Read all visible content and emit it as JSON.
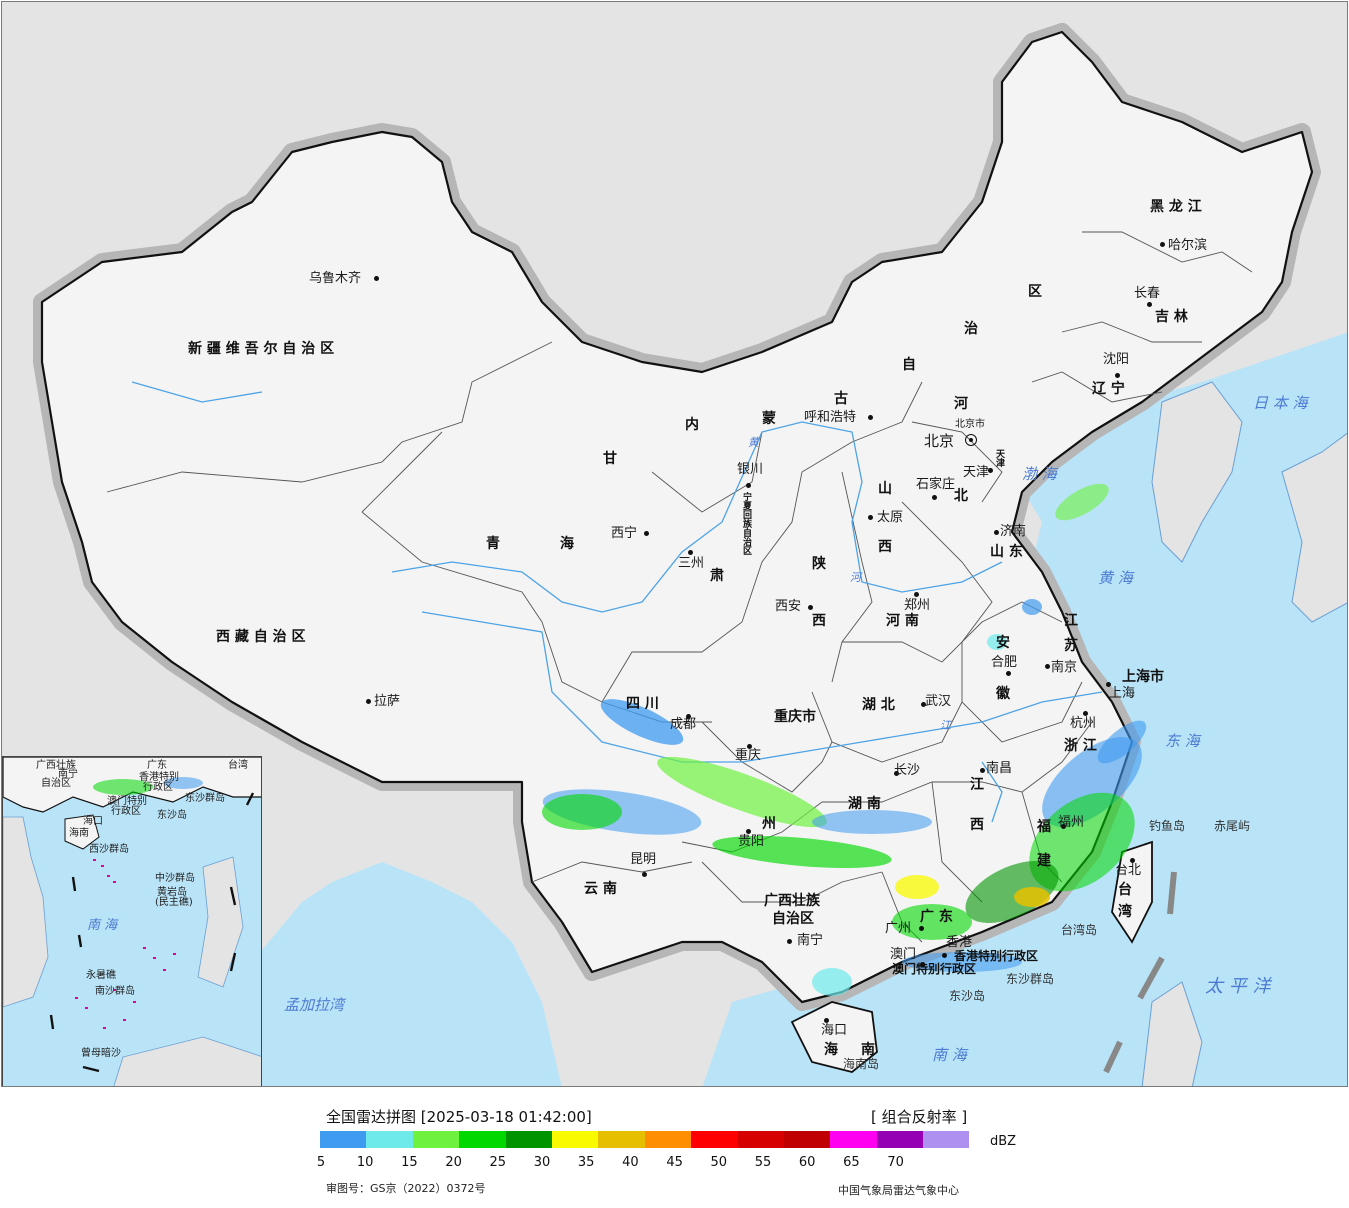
{
  "map": {
    "provinces": [
      {
        "id": "xinjiang",
        "name": "新 疆 维 吾 尔 自 治 区"
      },
      {
        "id": "xizang",
        "name": "西 藏 自 治 区"
      },
      {
        "id": "qinghai1",
        "name": "青"
      },
      {
        "id": "qinghai2",
        "name": "海"
      },
      {
        "id": "gansu1",
        "name": "甘"
      },
      {
        "id": "gansu2",
        "name": "肃"
      },
      {
        "id": "neimenggu1",
        "name": "内"
      },
      {
        "id": "neimenggu2",
        "name": "蒙"
      },
      {
        "id": "neimenggu3",
        "name": "古"
      },
      {
        "id": "neimenggu4",
        "name": "自"
      },
      {
        "id": "neimenggu5",
        "name": "治"
      },
      {
        "id": "neimenggu6",
        "name": "区"
      },
      {
        "id": "heilongjiang",
        "name": "黑 龙 江"
      },
      {
        "id": "jilin",
        "name": "吉 林"
      },
      {
        "id": "liaoning",
        "name": "辽 宁"
      },
      {
        "id": "hebei1",
        "name": "河"
      },
      {
        "id": "hebei2",
        "name": "北"
      },
      {
        "id": "shanxi1",
        "name": "山"
      },
      {
        "id": "shanxi2",
        "name": "西"
      },
      {
        "id": "shandong",
        "name": "山 东"
      },
      {
        "id": "henan",
        "name": "河 南"
      },
      {
        "id": "shaanxi1",
        "name": "陕"
      },
      {
        "id": "shaanxi2",
        "name": "西"
      },
      {
        "id": "ningxia",
        "name": "宁夏回族自治区"
      },
      {
        "id": "sichuan",
        "name": "四 川"
      },
      {
        "id": "chongqing",
        "name": "重庆市"
      },
      {
        "id": "hubei",
        "name": "湖 北"
      },
      {
        "id": "anhui1",
        "name": "安"
      },
      {
        "id": "anhui2",
        "name": "徽"
      },
      {
        "id": "jiangsu1",
        "name": "江"
      },
      {
        "id": "jiangsu2",
        "name": "苏"
      },
      {
        "id": "shanghai",
        "name": "上海市"
      },
      {
        "id": "zhejiang",
        "name": "浙 江"
      },
      {
        "id": "jiangxi1",
        "name": "江"
      },
      {
        "id": "jiangxi2",
        "name": "西"
      },
      {
        "id": "hunan",
        "name": "湖 南"
      },
      {
        "id": "guizhou",
        "name": "州"
      },
      {
        "id": "yunnan",
        "name": "云 南"
      },
      {
        "id": "guangxi1",
        "name": "广西壮族"
      },
      {
        "id": "guangxi2",
        "name": "自治区"
      },
      {
        "id": "guangdong",
        "name": "广 东"
      },
      {
        "id": "fujian1",
        "name": "福"
      },
      {
        "id": "fujian2",
        "name": "建"
      },
      {
        "id": "taiwan1",
        "name": "台"
      },
      {
        "id": "taiwan2",
        "name": "湾"
      },
      {
        "id": "hainan1",
        "name": "海"
      },
      {
        "id": "hainan2",
        "name": "南"
      },
      {
        "id": "hk",
        "name": "香港特别行政区"
      },
      {
        "id": "macau",
        "name": "澳门特别行政区"
      },
      {
        "id": "tianjin_small",
        "name": "天津"
      },
      {
        "id": "gansu_lanzhou_city",
        "name": "市"
      }
    ],
    "cities": [
      {
        "id": "urumqi",
        "name": "乌鲁木齐"
      },
      {
        "id": "lhasa",
        "name": "拉萨"
      },
      {
        "id": "xining",
        "name": "西宁"
      },
      {
        "id": "lanzhou",
        "name": "三州"
      },
      {
        "id": "yinchuan",
        "name": "银川"
      },
      {
        "id": "hohhot",
        "name": "呼和浩特"
      },
      {
        "id": "beijing",
        "name": "北京"
      },
      {
        "id": "tianjin",
        "name": "天津"
      },
      {
        "id": "shijiazhuang",
        "name": "石家庄"
      },
      {
        "id": "taiyuan",
        "name": "太原"
      },
      {
        "id": "jinan",
        "name": "济南"
      },
      {
        "id": "zhengzhou",
        "name": "郑州"
      },
      {
        "id": "xian",
        "name": "西安"
      },
      {
        "id": "chengdu",
        "name": "成都"
      },
      {
        "id": "chongqing_city",
        "name": "重庆"
      },
      {
        "id": "wuhan",
        "name": "武汉"
      },
      {
        "id": "hefei",
        "name": "合肥"
      },
      {
        "id": "nanjing",
        "name": "南京"
      },
      {
        "id": "shanghai_city",
        "name": "上海"
      },
      {
        "id": "hangzhou",
        "name": "杭州"
      },
      {
        "id": "nanchang",
        "name": "南昌"
      },
      {
        "id": "changsha",
        "name": "长沙"
      },
      {
        "id": "guiyang",
        "name": "贵阳"
      },
      {
        "id": "kunming",
        "name": "昆明"
      },
      {
        "id": "nanning",
        "name": "南宁"
      },
      {
        "id": "guangzhou",
        "name": "广州"
      },
      {
        "id": "hongkong",
        "name": "香港"
      },
      {
        "id": "macao",
        "name": "澳门"
      },
      {
        "id": "fuzhou",
        "name": "福州"
      },
      {
        "id": "taipei",
        "name": "台北"
      },
      {
        "id": "haikou",
        "name": "海口"
      },
      {
        "id": "harbin",
        "name": "哈尔滨"
      },
      {
        "id": "changchun",
        "name": "长春"
      },
      {
        "id": "shenyang",
        "name": "沈阳"
      }
    ],
    "seas": [
      {
        "id": "bohai",
        "name": "渤 海"
      },
      {
        "id": "huanghai",
        "name": "黄 海"
      },
      {
        "id": "donghai",
        "name": "东 海"
      },
      {
        "id": "nanhai",
        "name": "南 海"
      },
      {
        "id": "riben",
        "name": "日 本 海"
      },
      {
        "id": "taipingyang",
        "name": "太 平 洋"
      },
      {
        "id": "mengjiala",
        "name": "孟加拉湾"
      }
    ],
    "islands": [
      {
        "id": "diaoyu",
        "name": "钓鱼岛"
      },
      {
        "id": "chiwei",
        "name": "赤尾屿"
      },
      {
        "id": "taiwan_island",
        "name": "台湾岛"
      },
      {
        "id": "dongsha_islands",
        "name": "东沙群岛"
      },
      {
        "id": "dongsha_island",
        "name": "东沙岛"
      },
      {
        "id": "hainan_island",
        "name": "海南岛"
      }
    ],
    "rivers": [
      {
        "id": "huanghe",
        "name": "黄"
      },
      {
        "id": "huanghe2",
        "name": "河"
      },
      {
        "id": "changjiang",
        "name": "江"
      }
    ],
    "beijing_city_label": "北京市"
  },
  "inset": {
    "labels": {
      "guangxi": "广西壮族",
      "guangxi2": "自治区",
      "nanning": "南宁",
      "hk": "香港特别",
      "hk2": "行政区",
      "macau": "澳门特别",
      "macau2": "行政区",
      "dongsha": "东沙群岛",
      "dongshadao": "东沙岛",
      "taiwan": "台湾",
      "haikou": "海口",
      "hainan": "海南",
      "xisha": "西沙群岛",
      "zhongsha": "中沙群岛",
      "huangyan": "黄岩岛",
      "huangyan2": "(民主礁)",
      "nanhai": "南 海",
      "nansha": "南沙群岛",
      "yongshu": "永暑礁",
      "zengmu": "曾母暗沙",
      "guangdong": "广东"
    }
  },
  "legend": {
    "title": "全国雷达拼图 [2025-03-18 01:42:00]",
    "product": "[ 组合反射率 ]",
    "unit": "dBZ",
    "ticks": [
      "5",
      "10",
      "15",
      "20",
      "25",
      "30",
      "35",
      "40",
      "45",
      "50",
      "55",
      "60",
      "65",
      "70"
    ],
    "colors": [
      "#3f9bf0",
      "#6eeaea",
      "#6ef23e",
      "#00d800",
      "#009400",
      "#f9f900",
      "#e6c000",
      "#ff8f00",
      "#ff0000",
      "#d60000",
      "#c00000",
      "#ff00f0",
      "#9600b4",
      "#ad90f0"
    ],
    "approval": "审图号：GS京（2022）0372号",
    "source": "中国气象局雷达气象中心"
  },
  "palette": {
    "land": "#f4f4f4",
    "foreign": "#e4e4e4",
    "ocean": "#b9e3f7",
    "border": "#111111",
    "halo": "#b6b6b6",
    "river": "#4da3e6"
  }
}
